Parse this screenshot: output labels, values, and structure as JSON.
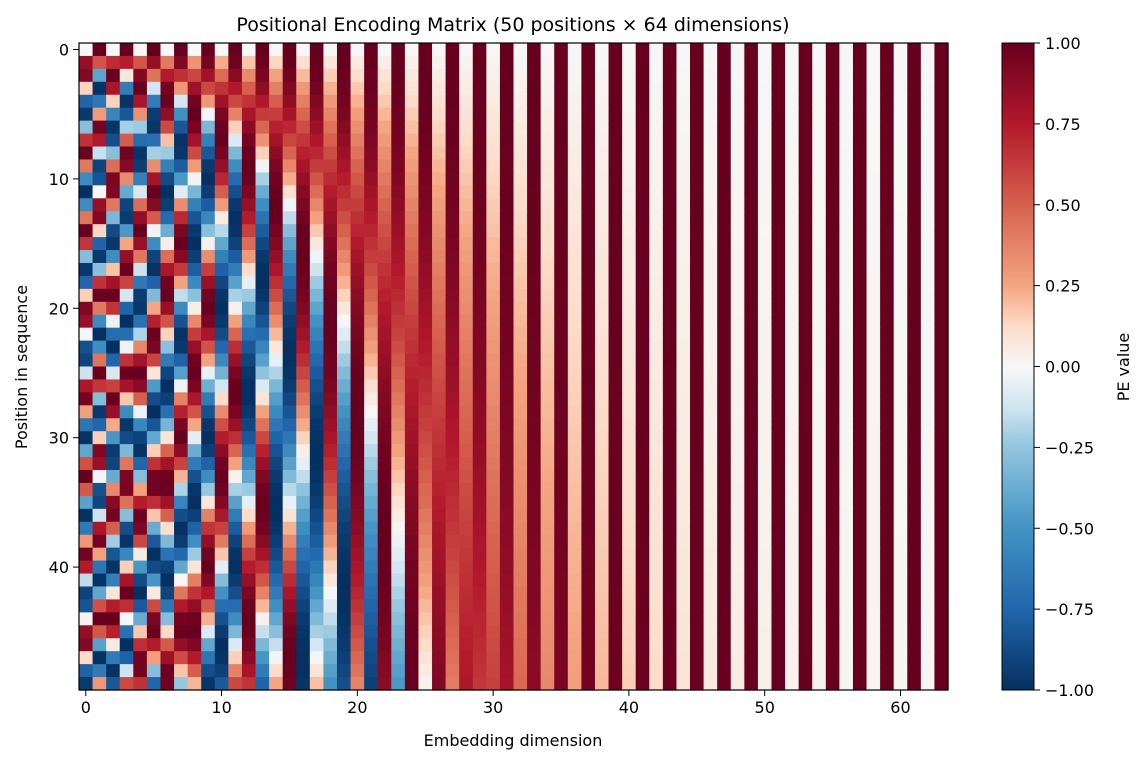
{
  "chart_data": {
    "type": "heatmap",
    "title": "Positional Encoding Matrix (50 positions × 64 dimensions)",
    "xlabel": "Embedding dimension",
    "ylabel": "Position in sequence",
    "colorbar_label": "PE value",
    "colormap": "RdBu_r",
    "colormap_stops": [
      {
        "value": -1.0,
        "color": "#053061"
      },
      {
        "value": -0.75,
        "color": "#2166ac"
      },
      {
        "value": -0.5,
        "color": "#4393c3"
      },
      {
        "value": -0.25,
        "color": "#92c5de"
      },
      {
        "value": -0.125,
        "color": "#d1e5f0"
      },
      {
        "value": 0.0,
        "color": "#f7f7f7"
      },
      {
        "value": 0.125,
        "color": "#fddbc7"
      },
      {
        "value": 0.25,
        "color": "#f4a582"
      },
      {
        "value": 0.5,
        "color": "#d6604d"
      },
      {
        "value": 0.75,
        "color": "#b2182b"
      },
      {
        "value": 1.0,
        "color": "#67001f"
      }
    ],
    "n_positions": 50,
    "n_dimensions": 64,
    "encoding": "sinusoidal",
    "formula": "PE(pos, 2i) = sin(pos / 10000^(2i/64)), PE(pos, 2i+1) = cos(pos / 10000^(2i/64))",
    "vmin": -1.0,
    "vmax": 1.0,
    "x_ticks": [
      0,
      10,
      20,
      30,
      40,
      50,
      60
    ],
    "y_ticks": [
      0,
      10,
      20,
      30,
      40
    ],
    "colorbar_ticks": [
      1.0,
      0.75,
      0.5,
      0.25,
      0.0,
      -0.25,
      -0.5,
      -0.75,
      -1.0
    ],
    "colorbar_tick_labels": [
      "1.00",
      "0.75",
      "0.50",
      "0.25",
      "0.00",
      "−0.25",
      "−0.50",
      "−0.75",
      "−1.00"
    ],
    "xlim": [
      -0.5,
      63.5
    ],
    "ylim": [
      49.5,
      -0.5
    ]
  }
}
